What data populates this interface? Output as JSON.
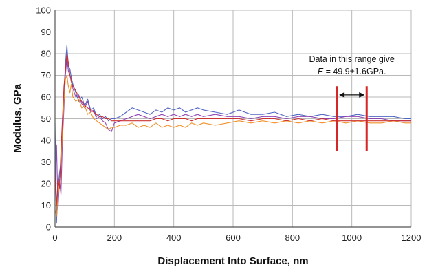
{
  "chart_data": {
    "type": "line",
    "title": "",
    "xlabel": "Displacement Into Surface, nm",
    "ylabel": "Modulus, GPa",
    "xlim": [
      0,
      1200
    ],
    "ylim": [
      0,
      100
    ],
    "x_ticks": [
      0,
      200,
      400,
      600,
      800,
      1000,
      1200
    ],
    "y_ticks": [
      0,
      10,
      20,
      30,
      40,
      50,
      60,
      70,
      80,
      90,
      100
    ],
    "grid": true,
    "legend": "none",
    "annotation": {
      "line1": "Data in this range give",
      "line2_italic": "E",
      "line2_rest": " = 49.9±1.6GPa.",
      "range_x": [
        950,
        1050
      ],
      "range_y": [
        35,
        65
      ],
      "arrow_y": 61,
      "marker_color": "#d62728"
    },
    "series": [
      {
        "color": "#4a5fc1",
        "x": [
          0,
          5,
          10,
          15,
          20,
          25,
          30,
          35,
          40,
          45,
          50,
          55,
          60,
          70,
          80,
          90,
          100,
          110,
          120,
          130,
          140,
          150,
          160,
          170,
          180,
          190,
          200,
          220,
          240,
          260,
          280,
          300,
          320,
          340,
          360,
          380,
          400,
          420,
          440,
          460,
          480,
          500,
          540,
          580,
          620,
          660,
          700,
          740,
          780,
          820,
          860,
          900,
          940,
          980,
          1020,
          1060,
          1100,
          1140,
          1180,
          1200
        ],
        "y": [
          48,
          2,
          18,
          25,
          30,
          48,
          62,
          75,
          84,
          74,
          73,
          69,
          66,
          62,
          58,
          60,
          56,
          59,
          54,
          55,
          51,
          52,
          50,
          51,
          49,
          50,
          50,
          51,
          53,
          55,
          54,
          53,
          52,
          54,
          53,
          55,
          54,
          55,
          53,
          54,
          55,
          54,
          53,
          52,
          54,
          52,
          52,
          53,
          51,
          52,
          51,
          52,
          51,
          51,
          52,
          51,
          51,
          51,
          50,
          50
        ]
      },
      {
        "color": "#8a3fb0",
        "x": [
          0,
          5,
          10,
          15,
          20,
          25,
          30,
          35,
          40,
          45,
          50,
          55,
          60,
          70,
          80,
          90,
          100,
          110,
          120,
          130,
          140,
          150,
          160,
          170,
          180,
          190,
          200,
          220,
          240,
          260,
          280,
          300,
          320,
          340,
          360,
          380,
          400,
          420,
          440,
          460,
          480,
          500,
          540,
          580,
          620,
          660,
          700,
          740,
          780,
          820,
          860,
          900,
          940,
          980,
          1020,
          1060,
          1100,
          1140,
          1180,
          1200
        ],
        "y": [
          12,
          38,
          8,
          22,
          15,
          40,
          55,
          70,
          78,
          72,
          70,
          68,
          64,
          60,
          61,
          57,
          55,
          58,
          53,
          54,
          50,
          51,
          49,
          48,
          45,
          44,
          48,
          49,
          50,
          51,
          52,
          51,
          50,
          51,
          52,
          51,
          52,
          51,
          52,
          51,
          52,
          51,
          52,
          51,
          51,
          50,
          51,
          51,
          50,
          51,
          51,
          50,
          50,
          51,
          51,
          50,
          50,
          49,
          49,
          49
        ]
      },
      {
        "color": "#f08a1c",
        "x": [
          0,
          5,
          10,
          15,
          20,
          25,
          30,
          35,
          40,
          45,
          50,
          55,
          60,
          70,
          80,
          90,
          100,
          110,
          120,
          130,
          140,
          150,
          160,
          170,
          180,
          190,
          200,
          220,
          240,
          260,
          280,
          300,
          320,
          340,
          360,
          380,
          400,
          420,
          440,
          460,
          480,
          500,
          540,
          580,
          620,
          660,
          700,
          740,
          780,
          820,
          860,
          900,
          940,
          980,
          1020,
          1060,
          1100,
          1140,
          1180,
          1200
        ],
        "y": [
          8,
          5,
          14,
          20,
          28,
          45,
          58,
          68,
          70,
          65,
          62,
          66,
          60,
          58,
          59,
          55,
          56,
          52,
          53,
          50,
          49,
          48,
          47,
          46,
          45,
          46,
          46,
          47,
          47,
          48,
          46,
          47,
          46,
          48,
          46,
          47,
          46,
          47,
          46,
          48,
          47,
          48,
          47,
          48,
          49,
          48,
          49,
          48,
          49,
          48,
          49,
          48,
          49,
          48,
          49,
          48,
          48,
          49,
          48,
          48
        ]
      },
      {
        "color": "#cc2b2b",
        "x": [
          0,
          5,
          10,
          15,
          20,
          25,
          30,
          35,
          40,
          45,
          50,
          55,
          60,
          70,
          80,
          90,
          100,
          110,
          120,
          130,
          140,
          150,
          160,
          170,
          180,
          190,
          200,
          220,
          240,
          260,
          280,
          300,
          320,
          340,
          360,
          380,
          400,
          420,
          440,
          460,
          480,
          500,
          540,
          580,
          620,
          660,
          700,
          740,
          780,
          820,
          860,
          900,
          940,
          980,
          1020,
          1060,
          1100,
          1140,
          1180,
          1200
        ],
        "y": [
          25,
          10,
          22,
          18,
          35,
          50,
          65,
          72,
          80,
          76,
          70,
          67,
          65,
          63,
          60,
          58,
          56,
          55,
          54,
          53,
          52,
          51,
          51,
          50,
          50,
          49,
          49,
          49,
          49,
          49,
          49,
          49,
          49,
          50,
          50,
          49,
          50,
          50,
          50,
          49,
          50,
          50,
          50,
          50,
          50,
          49,
          50,
          50,
          49,
          50,
          49,
          50,
          49,
          49,
          49,
          49,
          49,
          49,
          49,
          49
        ]
      }
    ]
  }
}
